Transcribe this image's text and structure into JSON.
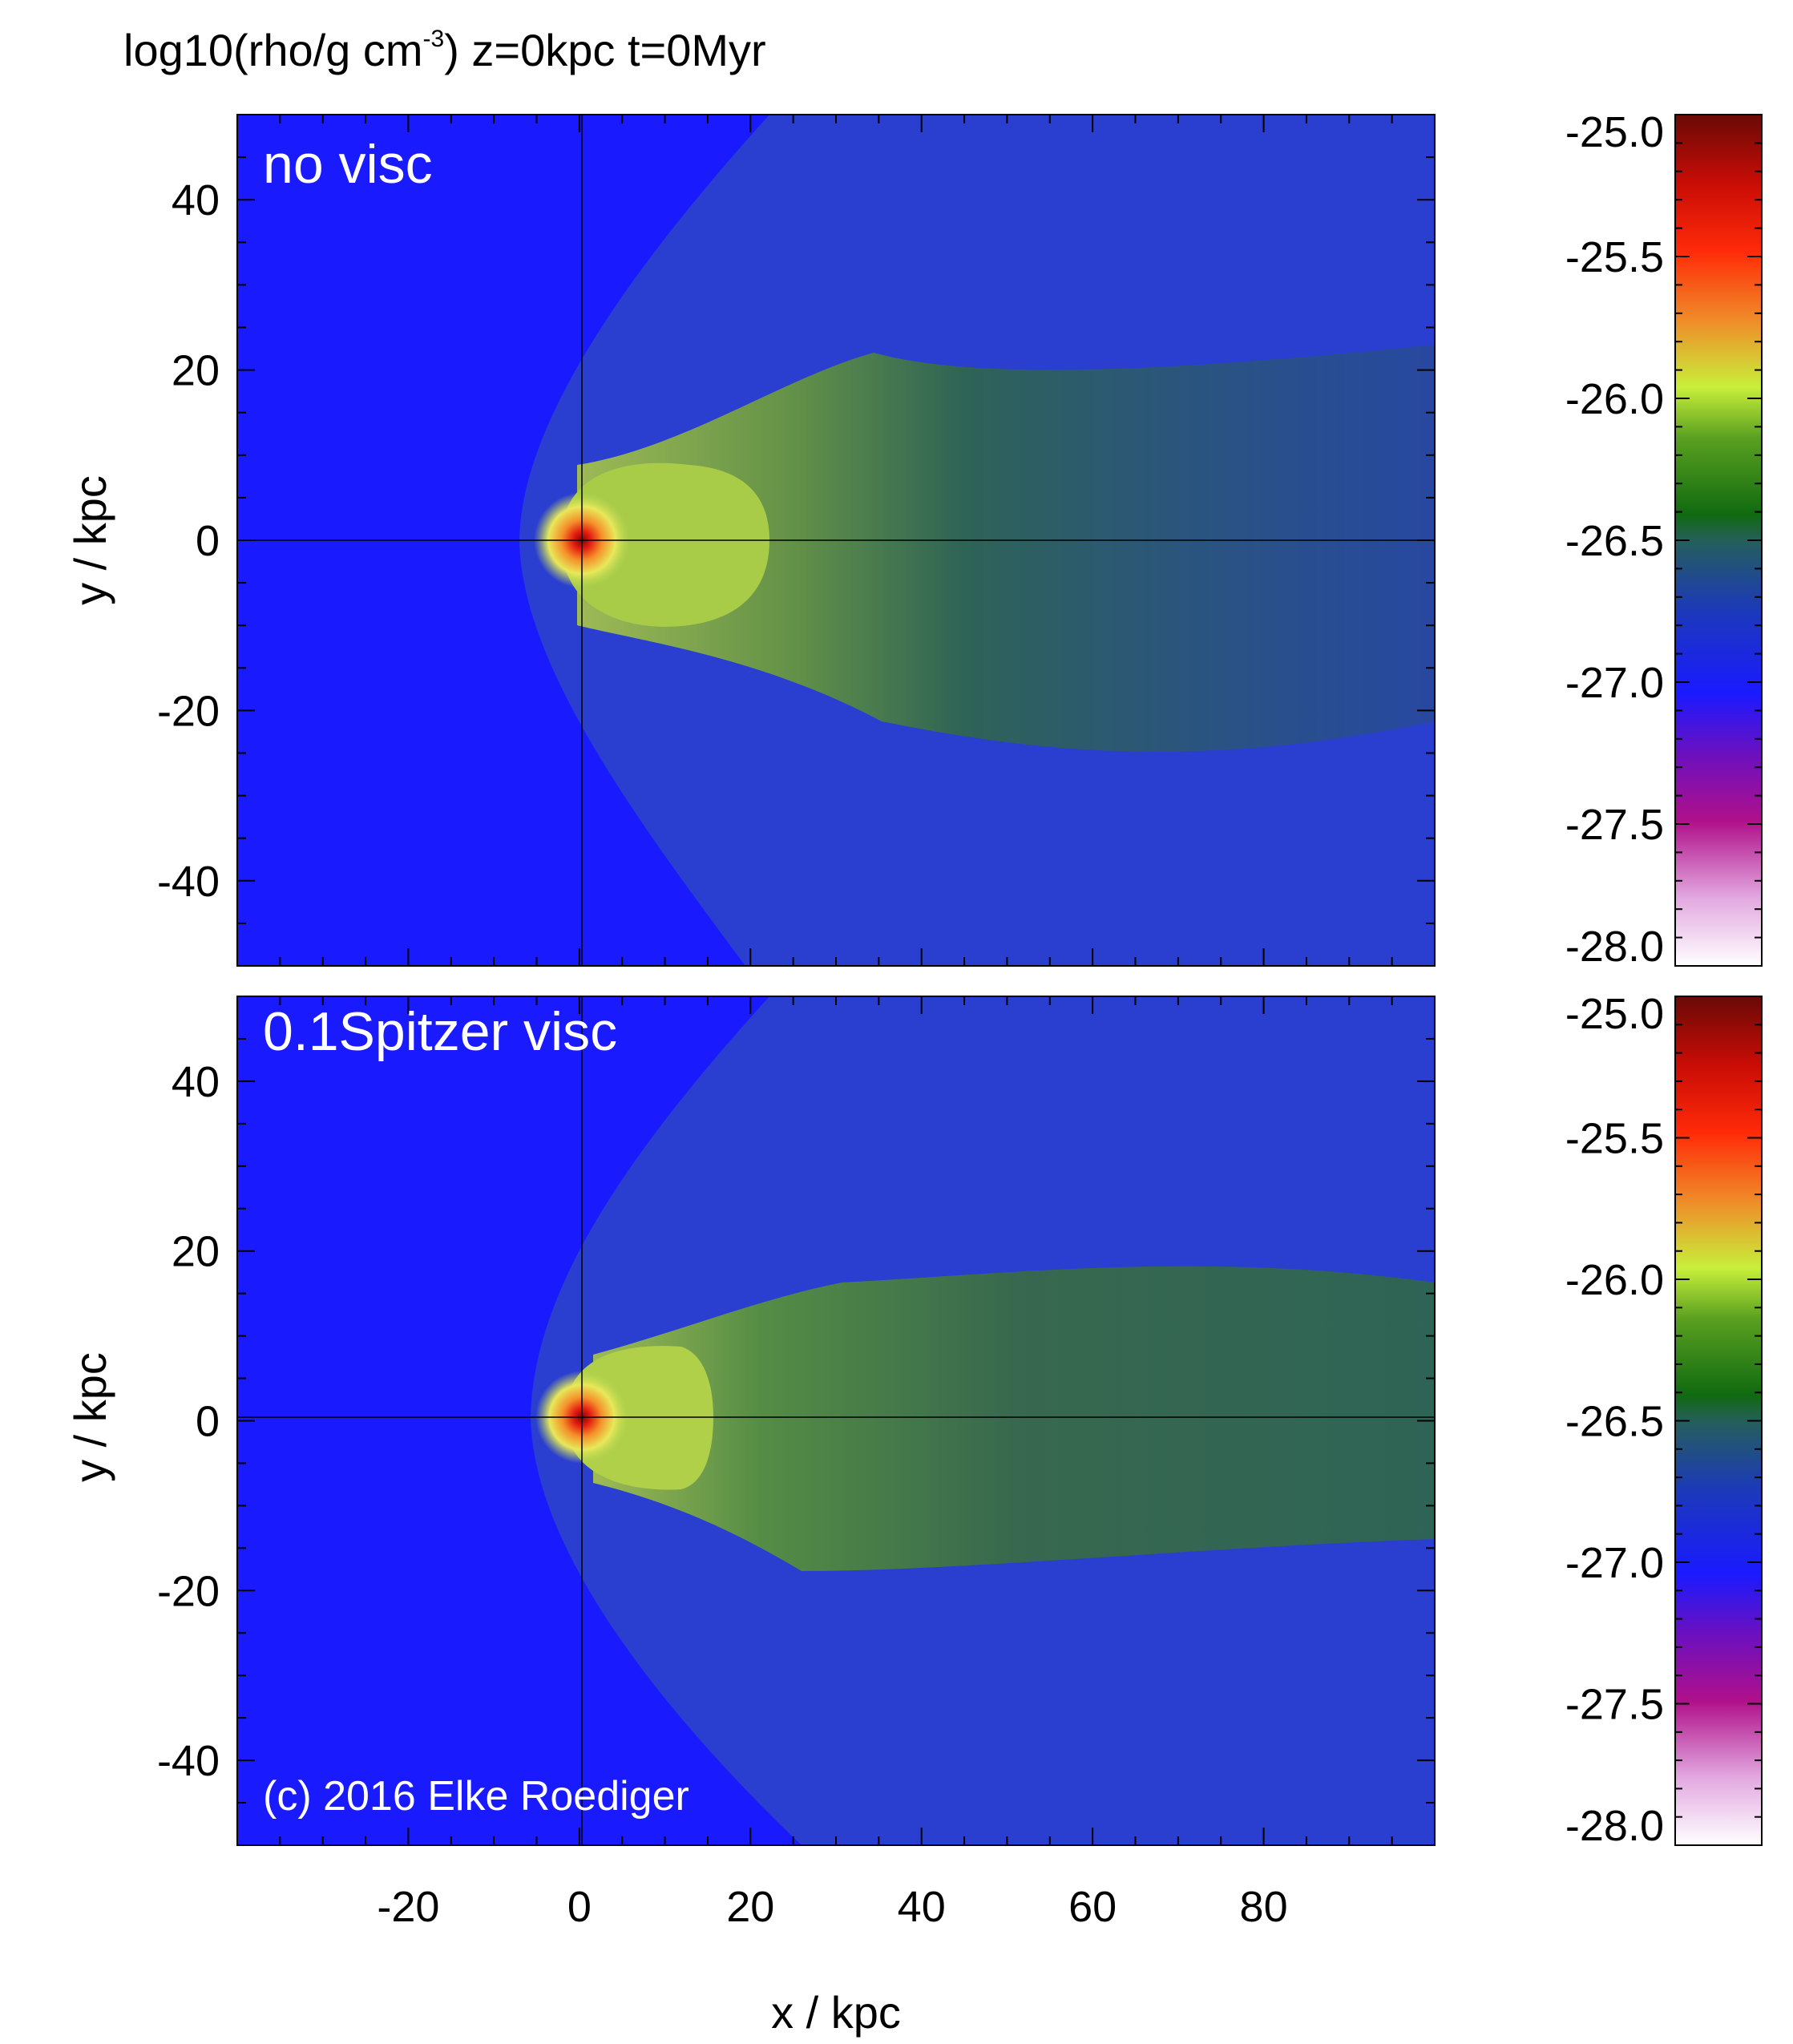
{
  "figure": {
    "title_main": "log10(rho/g cm",
    "title_exp": "-3",
    "title_rest": ")  z=0kpc  t=0Myr",
    "credit": "(c) 2016 Elke Roediger"
  },
  "chart_data": [
    {
      "type": "heatmap",
      "panel_label": "no visc",
      "quantity": "log10(rho/g cm^-3)",
      "xlabel": "",
      "ylabel": "y / kpc",
      "xlim": [
        -40,
        100
      ],
      "ylim": [
        -50,
        50
      ],
      "xticks": [
        -20,
        0,
        20,
        40,
        60,
        80
      ],
      "yticks": [
        40,
        20,
        0,
        -20,
        -40
      ],
      "ytick_labels": [
        "40",
        "20",
        "0",
        "-20",
        "-40"
      ],
      "core_center": [
        0,
        0
      ],
      "colorbar": {
        "range": [
          -28.0,
          -25.0
        ],
        "ticks": [
          -25.0,
          -25.5,
          -26.0,
          -26.5,
          -27.0,
          -27.5,
          -28.0
        ],
        "tick_labels": [
          "-25.0",
          "-25.5",
          "-26.0",
          "-26.5",
          "-27.0",
          "-27.5",
          "-28.0"
        ]
      }
    },
    {
      "type": "heatmap",
      "panel_label": "0.1Spitzer visc",
      "quantity": "log10(rho/g cm^-3)",
      "xlabel": "x / kpc",
      "ylabel": "y / kpc",
      "xlim": [
        -40,
        100
      ],
      "ylim": [
        -50,
        50
      ],
      "xticks": [
        -20,
        0,
        20,
        40,
        60,
        80
      ],
      "xtick_labels": [
        "-20",
        "0",
        "20",
        "40",
        "60",
        "80"
      ],
      "yticks": [
        40,
        20,
        0,
        -20,
        -40
      ],
      "ytick_labels": [
        "40",
        "20",
        "0",
        "-20",
        "-40"
      ],
      "core_center": [
        0,
        0
      ],
      "colorbar": {
        "range": [
          -28.0,
          -25.0
        ],
        "ticks": [
          -25.0,
          -25.5,
          -26.0,
          -26.5,
          -27.0,
          -27.5,
          -28.0
        ],
        "tick_labels": [
          "-25.0",
          "-25.5",
          "-26.0",
          "-26.5",
          "-27.0",
          "-27.5",
          "-28.0"
        ]
      }
    }
  ],
  "colors": {
    "background": "#1a1aff",
    "bow_region": "#2a3ed0",
    "tail_dark": "#2f6a40",
    "tail_green": "#4a8f2c",
    "core_yellow": "#e6e84a",
    "core_orange": "#f08a2a",
    "core_red": "#e31a10",
    "core_dark": "#8a0a06"
  }
}
